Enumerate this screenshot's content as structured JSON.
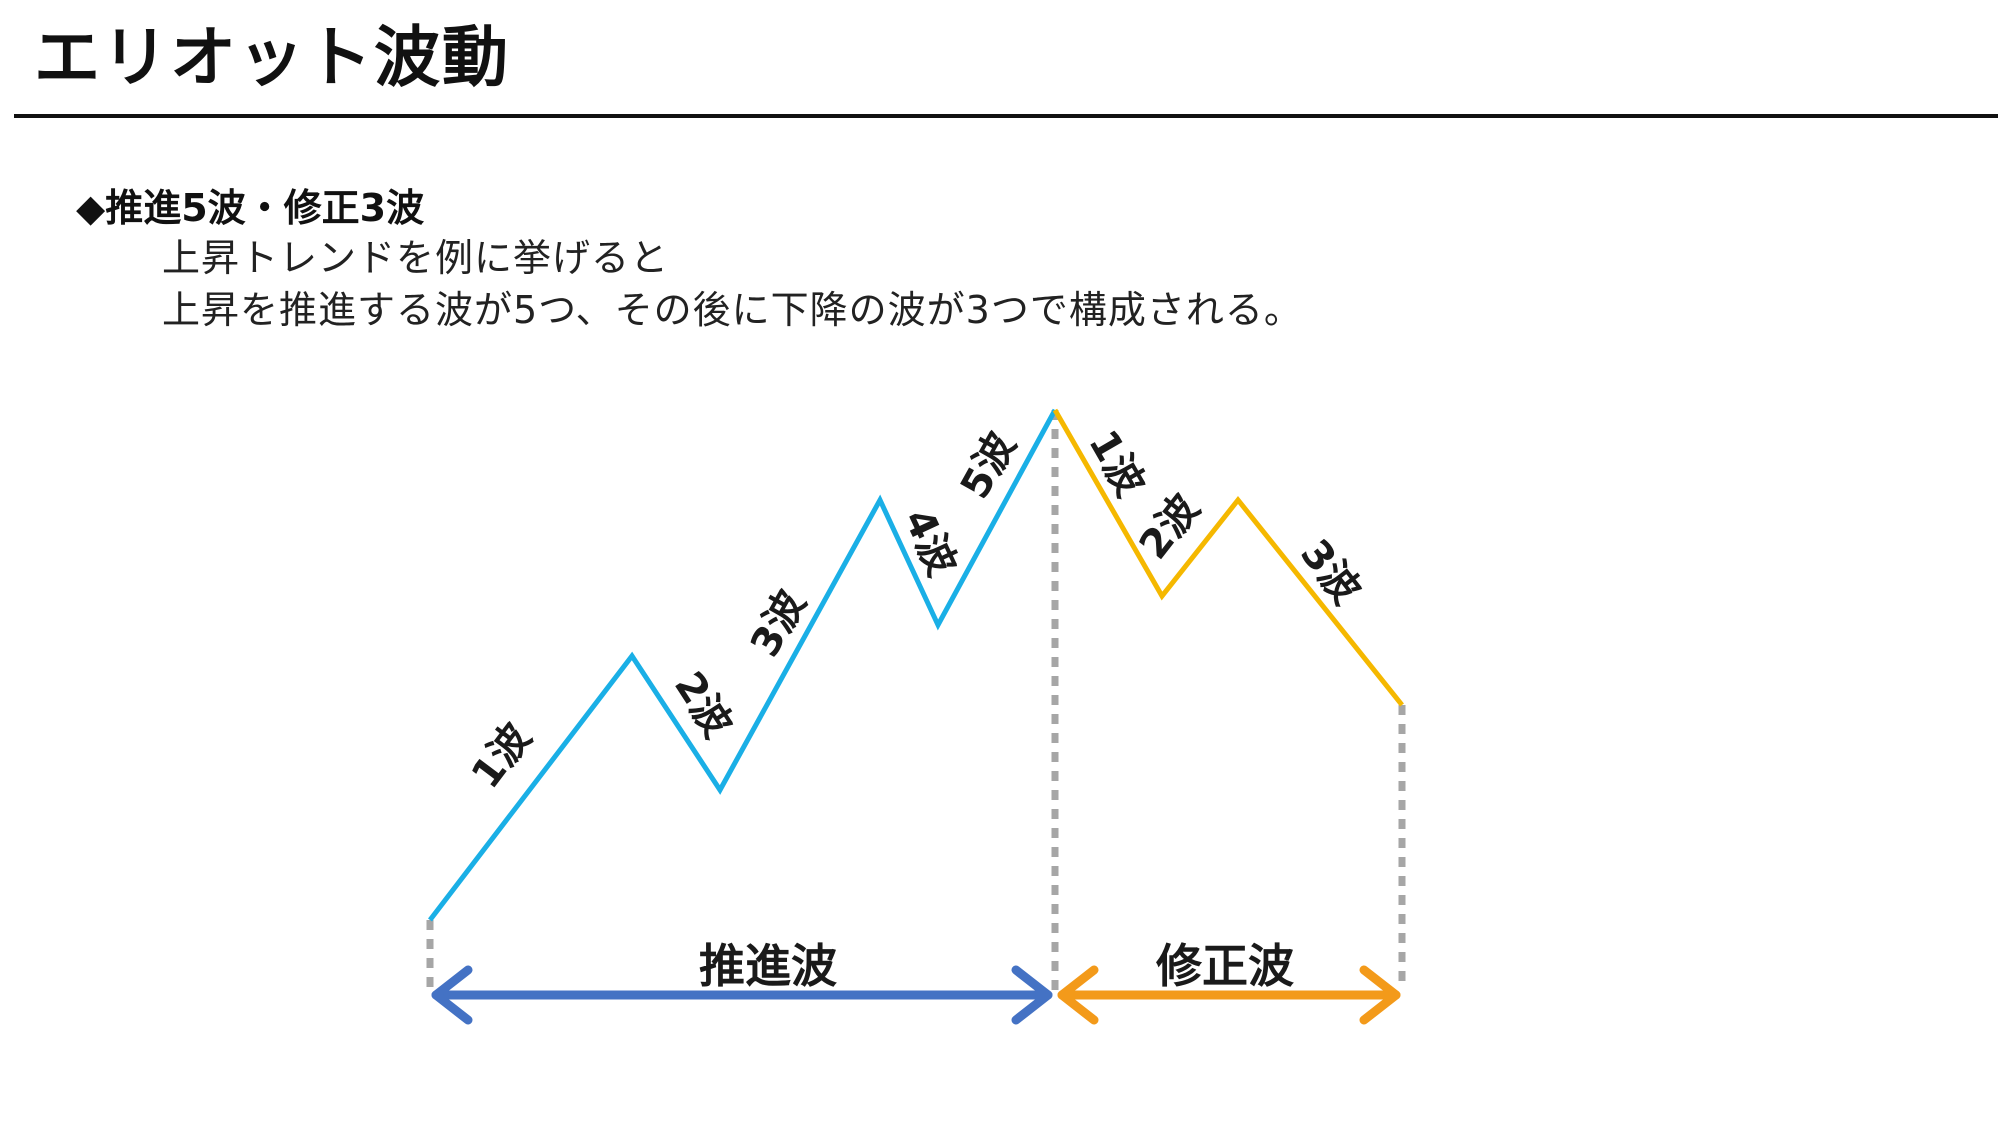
{
  "page": {
    "title": "エリオット波動",
    "heading": "◆推進5波・修正3波",
    "body_lines": [
      "上昇トレンドを例に挙げると",
      "上昇を推進する波が5つ、その後に下降の波が3つで構成される。"
    ]
  },
  "diagram": {
    "impulse": {
      "color": "#1aafe6",
      "phase_label": "推進波",
      "arrow_color": "#4472c4",
      "wave_labels": [
        "1波",
        "2波",
        "3波",
        "4波",
        "5波"
      ]
    },
    "corrective": {
      "color": "#f5b800",
      "phase_label": "修正波",
      "arrow_color": "#f39a1a",
      "wave_labels": [
        "1波",
        "2波",
        "3波"
      ]
    },
    "guide_color": "#a6a6a6"
  }
}
